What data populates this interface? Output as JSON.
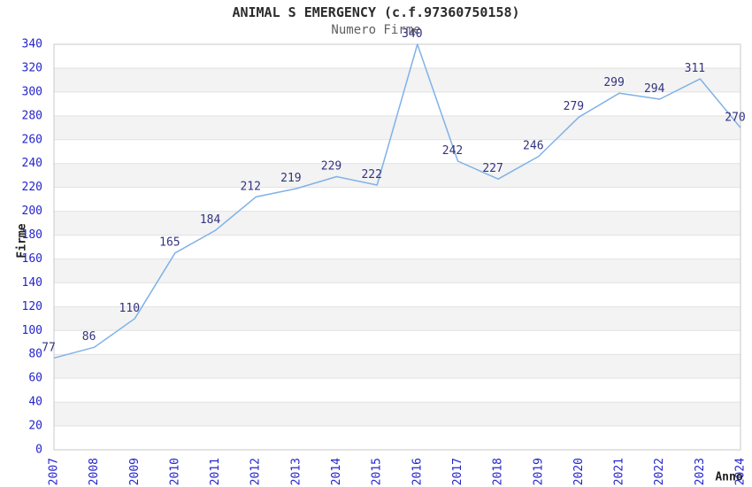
{
  "chart_data": {
    "type": "line",
    "title": "ANIMAL S EMERGENCY (c.f.97360750158)",
    "subtitle": "Numero Firme",
    "xlabel": "Anno",
    "ylabel": "Firme",
    "categories": [
      "2007",
      "2008",
      "2009",
      "2010",
      "2011",
      "2012",
      "2013",
      "2014",
      "2015",
      "2016",
      "2017",
      "2018",
      "2019",
      "2020",
      "2021",
      "2022",
      "2023",
      "2024"
    ],
    "values": [
      77,
      86,
      110,
      165,
      184,
      212,
      219,
      229,
      222,
      340,
      242,
      227,
      246,
      279,
      299,
      294,
      311,
      270
    ],
    "ylim": [
      0,
      340
    ],
    "y_tick_step": 20,
    "x_tick_rotation": -90,
    "grid": "horizontal-bands-alternating",
    "legend": "none",
    "point_labels_visible": true,
    "colors": {
      "line": "#7fb2e8",
      "tick_labels": "#2424cc",
      "point_labels": "#333380",
      "band_fill": "#f3f3f3",
      "gridline": "#e2e2e2",
      "plot_border": "#c8c8c8",
      "title": "#2b2b2b",
      "subtitle": "#5f5f5f",
      "axis_titles": "#1f1f1f",
      "background": "#ffffff"
    }
  }
}
